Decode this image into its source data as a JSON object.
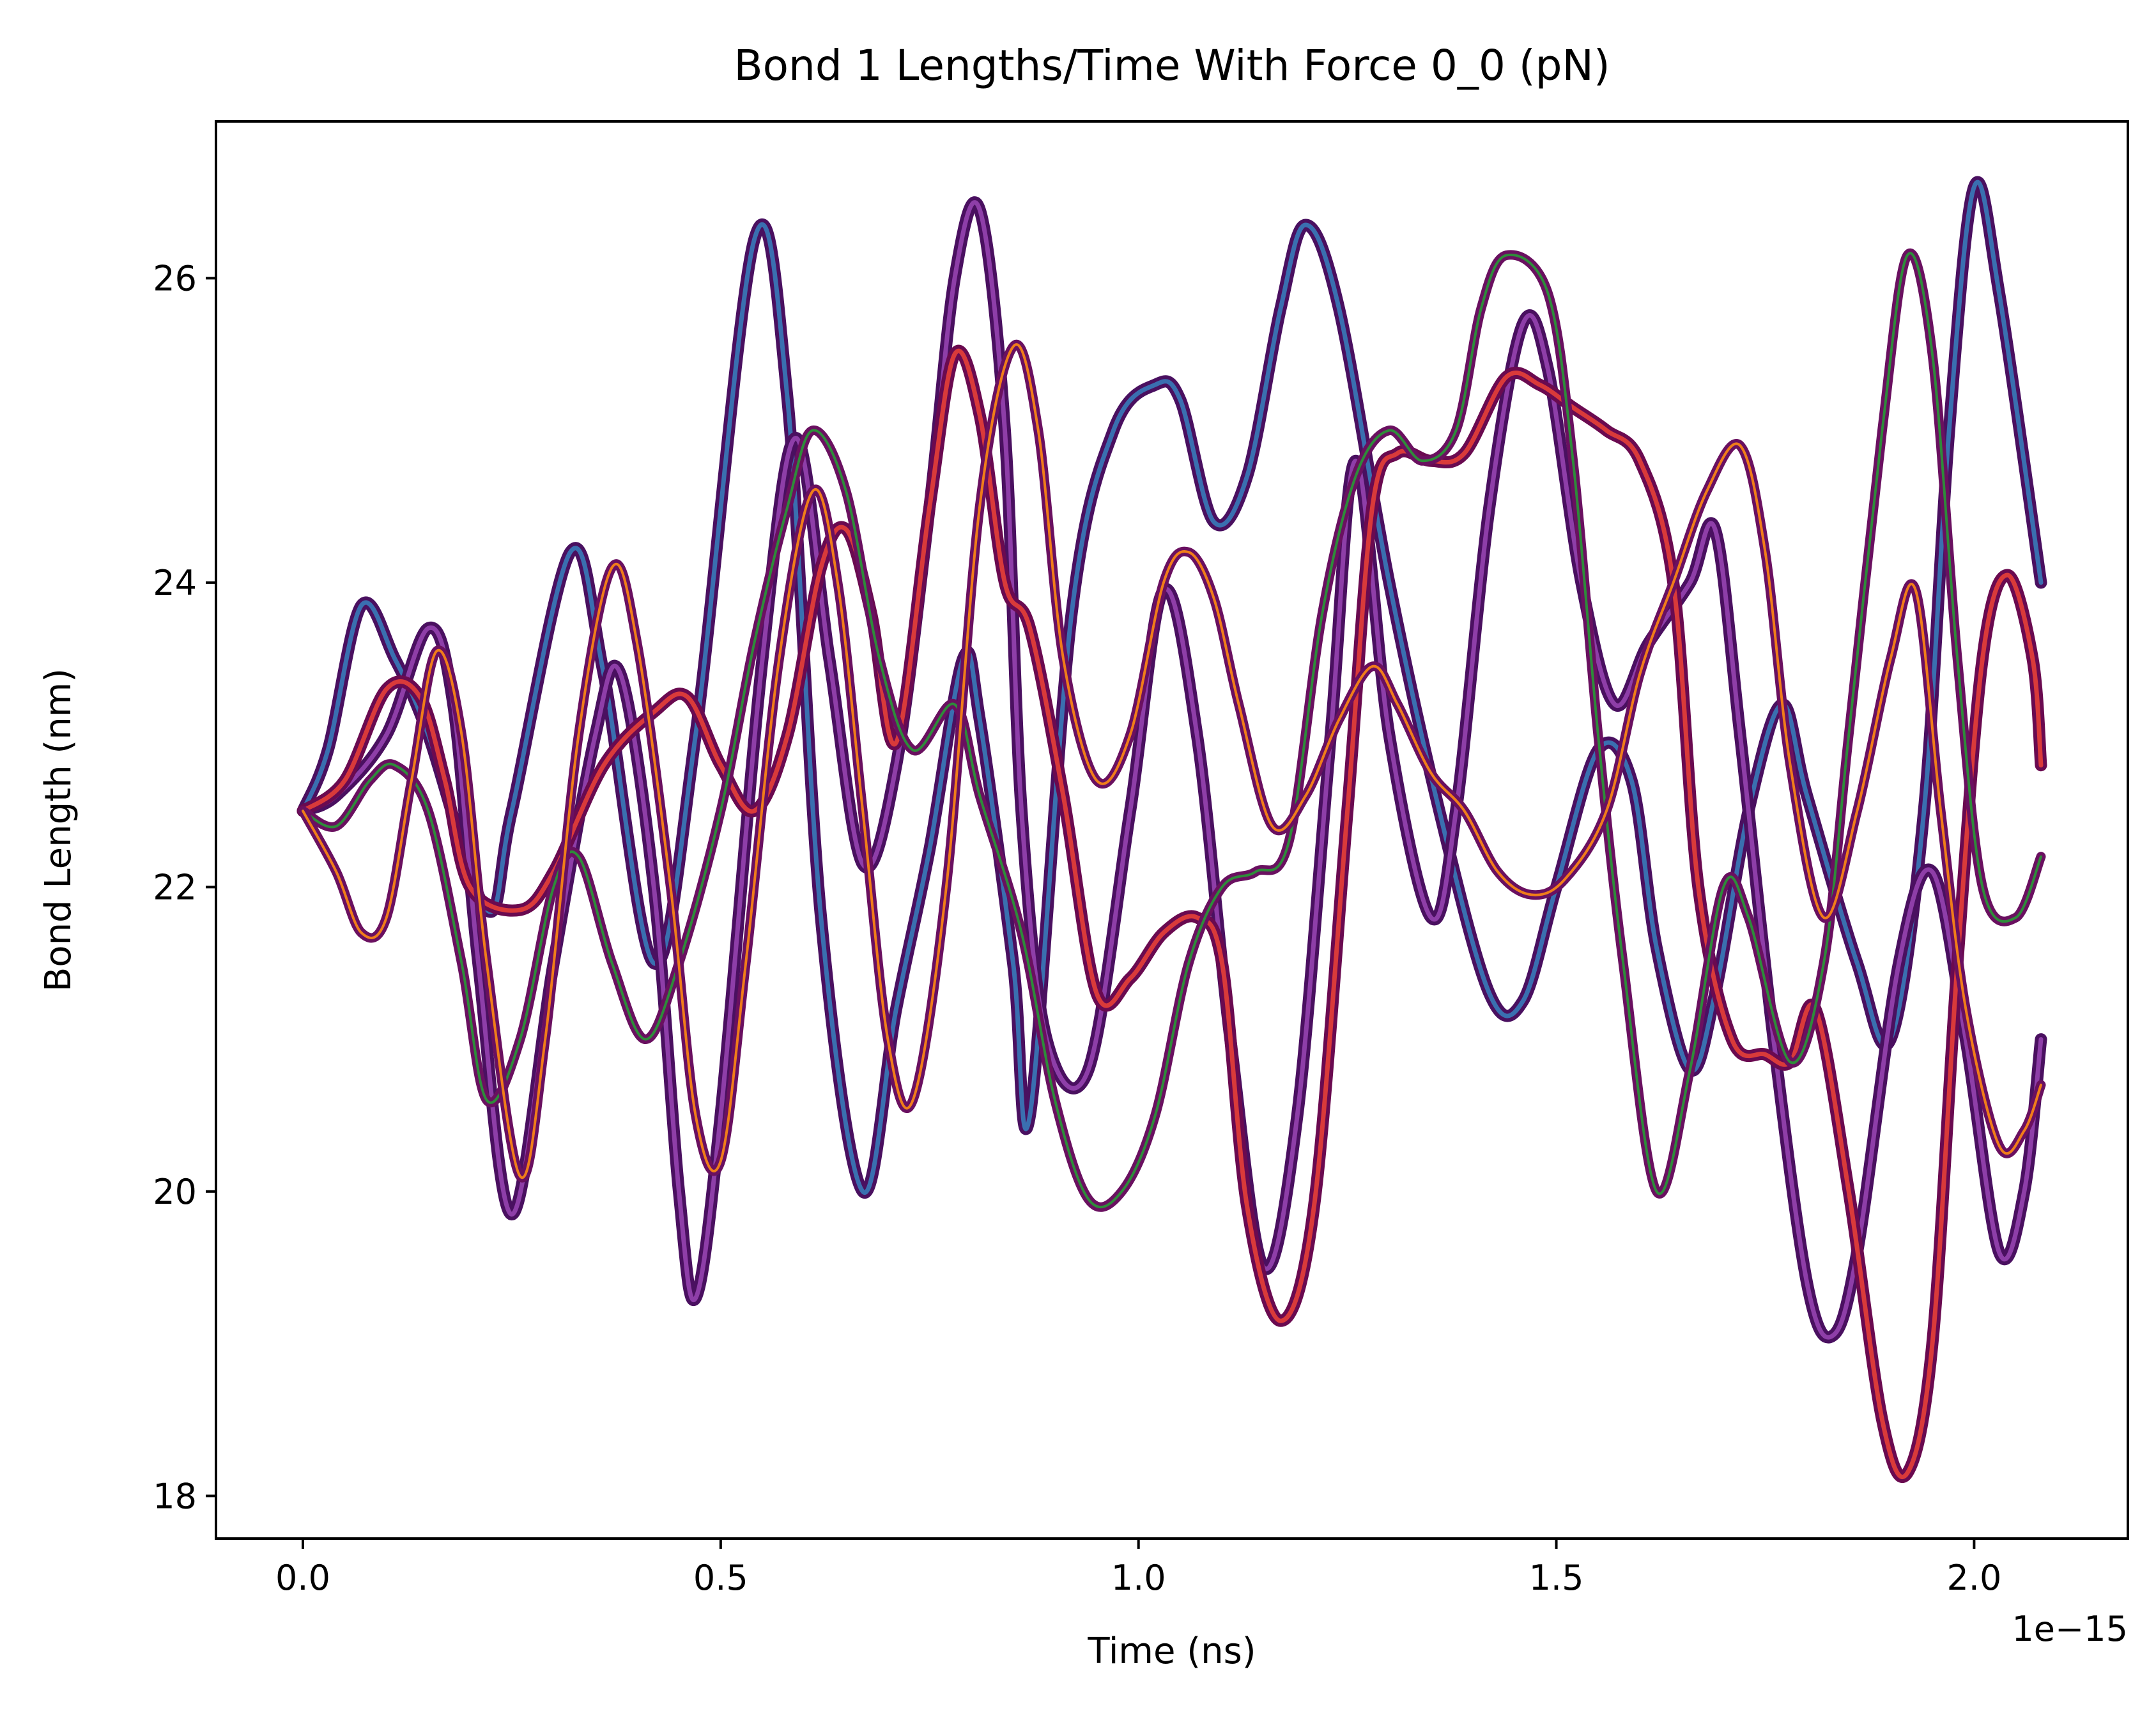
{
  "chart_data": {
    "type": "line",
    "title": "Bond 1 Lengths/Time With Force 0_0 (pN)",
    "xlabel": "Time (ns)",
    "ylabel": "Bond Length (nm)",
    "x_offset_text": "1e−15",
    "xlim": [
      -0.104,
      2.184
    ],
    "ylim": [
      17.72,
      27.03
    ],
    "xticks": [
      {
        "value": 0.0,
        "label": "0.0"
      },
      {
        "value": 0.5,
        "label": "0.5"
      },
      {
        "value": 1.0,
        "label": "1.0"
      },
      {
        "value": 1.5,
        "label": "1.5"
      },
      {
        "value": 2.0,
        "label": "2.0"
      }
    ],
    "yticks": [
      {
        "value": 18,
        "label": "18"
      },
      {
        "value": 20,
        "label": "20"
      },
      {
        "value": 22,
        "label": "22"
      },
      {
        "value": 24,
        "label": "24"
      },
      {
        "value": 26,
        "label": "26"
      }
    ],
    "grid": false,
    "legend": "none",
    "series": [
      {
        "color": "#3a6fb0",
        "outline": "#4a1060",
        "thick": true,
        "points": [
          [
            0,
            22.5
          ],
          [
            0.03,
            22.9
          ],
          [
            0.07,
            23.85
          ],
          [
            0.11,
            23.5
          ],
          [
            0.15,
            23.0
          ],
          [
            0.22,
            21.85
          ],
          [
            0.25,
            22.5
          ],
          [
            0.32,
            24.2
          ],
          [
            0.36,
            23.4
          ],
          [
            0.42,
            21.5
          ],
          [
            0.47,
            23.0
          ],
          [
            0.54,
            26.25
          ],
          [
            0.58,
            25.2
          ],
          [
            0.62,
            21.8
          ],
          [
            0.67,
            20.0
          ],
          [
            0.71,
            21.2
          ],
          [
            0.75,
            22.25
          ],
          [
            0.79,
            23.5
          ],
          [
            0.81,
            23.1
          ],
          [
            0.85,
            21.5
          ],
          [
            0.87,
            20.5
          ],
          [
            0.92,
            23.8
          ],
          [
            0.97,
            25.0
          ],
          [
            1.02,
            25.3
          ],
          [
            1.05,
            25.2
          ],
          [
            1.09,
            24.4
          ],
          [
            1.13,
            24.7
          ],
          [
            1.17,
            25.8
          ],
          [
            1.2,
            26.35
          ],
          [
            1.24,
            25.8
          ],
          [
            1.3,
            24.0
          ],
          [
            1.36,
            22.5
          ],
          [
            1.42,
            21.3
          ],
          [
            1.46,
            21.25
          ],
          [
            1.5,
            22.0
          ],
          [
            1.55,
            22.9
          ],
          [
            1.59,
            22.7
          ],
          [
            1.62,
            21.6
          ],
          [
            1.66,
            20.8
          ],
          [
            1.69,
            21.3
          ],
          [
            1.73,
            22.5
          ],
          [
            1.77,
            23.2
          ],
          [
            1.8,
            22.6
          ],
          [
            1.86,
            21.5
          ],
          [
            1.9,
            21.0
          ],
          [
            1.94,
            22.5
          ],
          [
            1.97,
            25.0
          ],
          [
            2.0,
            26.6
          ],
          [
            2.03,
            25.9
          ],
          [
            2.08,
            24.0
          ]
        ]
      },
      {
        "color": "#8e3ea8",
        "outline": "#4a1060",
        "thick": true,
        "points": [
          [
            0,
            22.5
          ],
          [
            0.04,
            22.6
          ],
          [
            0.1,
            23.0
          ],
          [
            0.15,
            23.7
          ],
          [
            0.18,
            23.2
          ],
          [
            0.21,
            21.5
          ],
          [
            0.25,
            19.85
          ],
          [
            0.3,
            21.5
          ],
          [
            0.35,
            23.0
          ],
          [
            0.38,
            23.4
          ],
          [
            0.42,
            22.0
          ],
          [
            0.45,
            20.0
          ],
          [
            0.47,
            19.3
          ],
          [
            0.5,
            20.5
          ],
          [
            0.55,
            23.5
          ],
          [
            0.59,
            24.95
          ],
          [
            0.63,
            23.5
          ],
          [
            0.67,
            22.15
          ],
          [
            0.71,
            22.8
          ],
          [
            0.75,
            24.5
          ],
          [
            0.78,
            26.0
          ],
          [
            0.81,
            26.45
          ],
          [
            0.84,
            25.0
          ],
          [
            0.86,
            22.5
          ],
          [
            0.89,
            21.0
          ],
          [
            0.94,
            20.8
          ],
          [
            0.99,
            22.5
          ],
          [
            1.03,
            23.95
          ],
          [
            1.07,
            23.0
          ],
          [
            1.11,
            21.0
          ],
          [
            1.15,
            19.5
          ],
          [
            1.19,
            20.5
          ],
          [
            1.23,
            23.0
          ],
          [
            1.26,
            24.8
          ],
          [
            1.3,
            23.0
          ],
          [
            1.35,
            21.8
          ],
          [
            1.38,
            22.5
          ],
          [
            1.42,
            24.5
          ],
          [
            1.46,
            25.7
          ],
          [
            1.49,
            25.4
          ],
          [
            1.53,
            24.0
          ],
          [
            1.57,
            23.2
          ],
          [
            1.61,
            23.6
          ],
          [
            1.66,
            24.0
          ],
          [
            1.69,
            24.35
          ],
          [
            1.72,
            23.0
          ],
          [
            1.76,
            21.0
          ],
          [
            1.8,
            19.4
          ],
          [
            1.83,
            19.05
          ],
          [
            1.86,
            19.6
          ],
          [
            1.91,
            21.5
          ],
          [
            1.95,
            22.1
          ],
          [
            1.99,
            21.0
          ],
          [
            2.03,
            19.6
          ],
          [
            2.06,
            20.0
          ],
          [
            2.08,
            21.0
          ]
        ]
      },
      {
        "color": "#d93a3a",
        "outline": "#6a0a50",
        "thick": true,
        "points": [
          [
            0,
            22.5
          ],
          [
            0.05,
            22.7
          ],
          [
            0.1,
            23.3
          ],
          [
            0.14,
            23.25
          ],
          [
            0.17,
            22.7
          ],
          [
            0.2,
            22.0
          ],
          [
            0.26,
            21.85
          ],
          [
            0.3,
            22.1
          ],
          [
            0.36,
            22.8
          ],
          [
            0.42,
            23.15
          ],
          [
            0.46,
            23.25
          ],
          [
            0.5,
            22.8
          ],
          [
            0.54,
            22.5
          ],
          [
            0.58,
            23.0
          ],
          [
            0.62,
            24.1
          ],
          [
            0.65,
            24.35
          ],
          [
            0.68,
            23.8
          ],
          [
            0.71,
            22.95
          ],
          [
            0.75,
            24.5
          ],
          [
            0.78,
            25.5
          ],
          [
            0.81,
            25.1
          ],
          [
            0.84,
            24.0
          ],
          [
            0.87,
            23.7
          ],
          [
            0.91,
            22.6
          ],
          [
            0.95,
            21.3
          ],
          [
            0.99,
            21.4
          ],
          [
            1.03,
            21.7
          ],
          [
            1.07,
            21.8
          ],
          [
            1.1,
            21.5
          ],
          [
            1.13,
            19.9
          ],
          [
            1.17,
            19.15
          ],
          [
            1.21,
            19.9
          ],
          [
            1.25,
            22.5
          ],
          [
            1.28,
            24.5
          ],
          [
            1.31,
            24.85
          ],
          [
            1.35,
            24.8
          ],
          [
            1.39,
            24.85
          ],
          [
            1.44,
            25.35
          ],
          [
            1.48,
            25.3
          ],
          [
            1.52,
            25.15
          ],
          [
            1.56,
            25.0
          ],
          [
            1.6,
            24.8
          ],
          [
            1.64,
            24.0
          ],
          [
            1.67,
            22.0
          ],
          [
            1.71,
            21.0
          ],
          [
            1.75,
            20.9
          ],
          [
            1.78,
            20.85
          ],
          [
            1.81,
            21.2
          ],
          [
            1.85,
            20.0
          ],
          [
            1.89,
            18.5
          ],
          [
            1.92,
            18.15
          ],
          [
            1.95,
            19.0
          ],
          [
            1.98,
            21.5
          ],
          [
            2.01,
            23.5
          ],
          [
            2.04,
            24.05
          ],
          [
            2.07,
            23.5
          ],
          [
            2.08,
            22.8
          ]
        ]
      },
      {
        "color": "#2e8b3a",
        "outline": "#6a1060",
        "thick": false,
        "points": [
          [
            0,
            22.5
          ],
          [
            0.04,
            22.4
          ],
          [
            0.08,
            22.7
          ],
          [
            0.11,
            22.8
          ],
          [
            0.15,
            22.5
          ],
          [
            0.19,
            21.5
          ],
          [
            0.22,
            20.6
          ],
          [
            0.26,
            21.0
          ],
          [
            0.3,
            22.0
          ],
          [
            0.33,
            22.2
          ],
          [
            0.37,
            21.5
          ],
          [
            0.41,
            21.0
          ],
          [
            0.45,
            21.5
          ],
          [
            0.5,
            22.5
          ],
          [
            0.54,
            23.6
          ],
          [
            0.58,
            24.5
          ],
          [
            0.61,
            25.0
          ],
          [
            0.65,
            24.6
          ],
          [
            0.69,
            23.5
          ],
          [
            0.73,
            22.9
          ],
          [
            0.78,
            23.2
          ],
          [
            0.81,
            22.6
          ],
          [
            0.86,
            21.7
          ],
          [
            0.9,
            20.6
          ],
          [
            0.94,
            19.95
          ],
          [
            0.98,
            20.0
          ],
          [
            1.02,
            20.5
          ],
          [
            1.06,
            21.5
          ],
          [
            1.1,
            22.0
          ],
          [
            1.14,
            22.1
          ],
          [
            1.18,
            22.3
          ],
          [
            1.22,
            23.8
          ],
          [
            1.26,
            24.7
          ],
          [
            1.3,
            25.0
          ],
          [
            1.34,
            24.8
          ],
          [
            1.38,
            25.0
          ],
          [
            1.41,
            25.8
          ],
          [
            1.44,
            26.15
          ],
          [
            1.49,
            25.9
          ],
          [
            1.52,
            24.8
          ],
          [
            1.55,
            23.0
          ],
          [
            1.58,
            21.5
          ],
          [
            1.62,
            20.0
          ],
          [
            1.66,
            20.8
          ],
          [
            1.7,
            22.0
          ],
          [
            1.73,
            21.8
          ],
          [
            1.78,
            20.85
          ],
          [
            1.82,
            21.5
          ],
          [
            1.85,
            23.0
          ],
          [
            1.89,
            25.0
          ],
          [
            1.92,
            26.15
          ],
          [
            1.95,
            25.5
          ],
          [
            1.98,
            23.5
          ],
          [
            2.01,
            22.0
          ],
          [
            2.05,
            21.8
          ],
          [
            2.08,
            22.2
          ]
        ]
      },
      {
        "color": "#f07d1a",
        "outline": "#6a1060",
        "thick": false,
        "points": [
          [
            0,
            22.5
          ],
          [
            0.04,
            22.1
          ],
          [
            0.07,
            21.7
          ],
          [
            0.1,
            21.8
          ],
          [
            0.13,
            22.7
          ],
          [
            0.16,
            23.55
          ],
          [
            0.19,
            23.0
          ],
          [
            0.22,
            21.5
          ],
          [
            0.26,
            20.1
          ],
          [
            0.29,
            21.0
          ],
          [
            0.33,
            23.0
          ],
          [
            0.37,
            24.1
          ],
          [
            0.4,
            23.6
          ],
          [
            0.44,
            22.0
          ],
          [
            0.47,
            20.5
          ],
          [
            0.5,
            20.2
          ],
          [
            0.53,
            21.5
          ],
          [
            0.57,
            23.5
          ],
          [
            0.61,
            24.6
          ],
          [
            0.64,
            24.0
          ],
          [
            0.67,
            22.5
          ],
          [
            0.7,
            21.0
          ],
          [
            0.73,
            20.6
          ],
          [
            0.77,
            22.0
          ],
          [
            0.81,
            24.5
          ],
          [
            0.85,
            25.55
          ],
          [
            0.88,
            25.0
          ],
          [
            0.91,
            23.5
          ],
          [
            0.95,
            22.7
          ],
          [
            0.99,
            23.0
          ],
          [
            1.03,
            24.0
          ],
          [
            1.06,
            24.2
          ],
          [
            1.09,
            23.9
          ],
          [
            1.12,
            23.2
          ],
          [
            1.16,
            22.4
          ],
          [
            1.2,
            22.6
          ],
          [
            1.24,
            23.1
          ],
          [
            1.28,
            23.45
          ],
          [
            1.31,
            23.2
          ],
          [
            1.35,
            22.75
          ],
          [
            1.39,
            22.5
          ],
          [
            1.43,
            22.1
          ],
          [
            1.47,
            21.95
          ],
          [
            1.51,
            22.05
          ],
          [
            1.56,
            22.5
          ],
          [
            1.6,
            23.4
          ],
          [
            1.64,
            24.0
          ],
          [
            1.68,
            24.6
          ],
          [
            1.72,
            24.9
          ],
          [
            1.75,
            24.2
          ],
          [
            1.78,
            22.8
          ],
          [
            1.82,
            21.8
          ],
          [
            1.86,
            22.5
          ],
          [
            1.9,
            23.5
          ],
          [
            1.93,
            23.95
          ],
          [
            1.96,
            22.5
          ],
          [
            1.99,
            21.2
          ],
          [
            2.03,
            20.3
          ],
          [
            2.06,
            20.4
          ],
          [
            2.08,
            20.7
          ]
        ]
      }
    ]
  }
}
